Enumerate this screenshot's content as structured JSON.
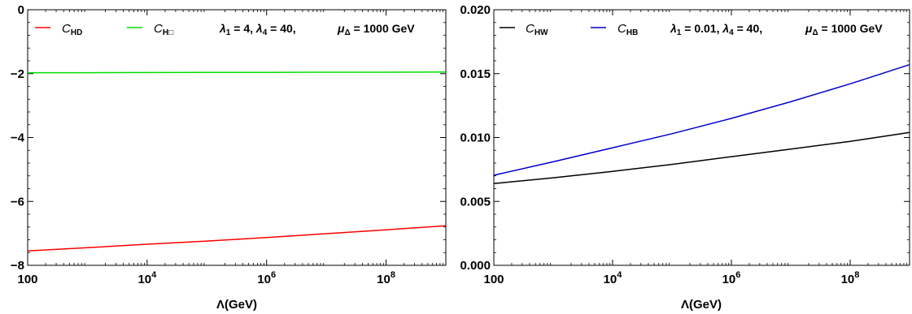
{
  "chart_data": [
    {
      "type": "line",
      "x_scale": "log",
      "xlabel": "Λ(GeV)",
      "ylabel": "",
      "xlim": [
        100,
        1000000000
      ],
      "ylim": [
        -8,
        0
      ],
      "x_ticks": [
        {
          "value": 100,
          "base": "100",
          "exp": ""
        },
        {
          "value": 10000,
          "base": "10",
          "exp": "4"
        },
        {
          "value": 1000000,
          "base": "10",
          "exp": "6"
        },
        {
          "value": 100000000,
          "base": "10",
          "exp": "8"
        }
      ],
      "y_ticks": [
        {
          "value": 0,
          "label": "0"
        },
        {
          "value": -2,
          "label": "−2"
        },
        {
          "value": -4,
          "label": "−4"
        },
        {
          "value": -6,
          "label": "−6"
        },
        {
          "value": -8,
          "label": "−8"
        }
      ],
      "legend_position": "top",
      "series": [
        {
          "name": "C",
          "name_sub": "HD",
          "color": "#ff0000",
          "x": [
            100,
            1000,
            10000,
            100000,
            1000000,
            10000000,
            100000000,
            1000000000
          ],
          "y": [
            -7.55,
            -7.45,
            -7.34,
            -7.24,
            -7.13,
            -7.01,
            -6.89,
            -6.76
          ]
        },
        {
          "name": "C",
          "name_sub": "H□",
          "color": "#00dd00",
          "x": [
            100,
            1000,
            10000,
            100000,
            1000000,
            10000000,
            100000000,
            1000000000
          ],
          "y": [
            -1.97,
            -1.97,
            -1.965,
            -1.96,
            -1.96,
            -1.955,
            -1.955,
            -1.95
          ]
        }
      ],
      "annotation": {
        "parts": [
          {
            "sym": "λ",
            "sub": "1",
            "val": " = 4, "
          },
          {
            "sym": "λ",
            "sub": "4",
            "val": " = 40,"
          }
        ],
        "mu": {
          "sym": "μ",
          "sub": "Δ",
          "val": " = 1000 GeV"
        }
      }
    },
    {
      "type": "line",
      "x_scale": "log",
      "xlabel": "Λ(GeV)",
      "ylabel": "",
      "xlim": [
        100,
        1000000000
      ],
      "ylim": [
        0,
        0.02
      ],
      "x_ticks": [
        {
          "value": 100,
          "base": "100",
          "exp": ""
        },
        {
          "value": 10000,
          "base": "10",
          "exp": "4"
        },
        {
          "value": 1000000,
          "base": "10",
          "exp": "6"
        },
        {
          "value": 100000000,
          "base": "10",
          "exp": "8"
        }
      ],
      "y_ticks": [
        {
          "value": 0,
          "label": "0.000"
        },
        {
          "value": 0.005,
          "label": "0.005"
        },
        {
          "value": 0.01,
          "label": "0.010"
        },
        {
          "value": 0.015,
          "label": "0.015"
        },
        {
          "value": 0.02,
          "label": "0.020"
        }
      ],
      "legend_position": "top",
      "series": [
        {
          "name": "C",
          "name_sub": "HW",
          "color": "#000000",
          "x": [
            100,
            1000,
            10000,
            100000,
            1000000,
            10000000,
            100000000,
            1000000000
          ],
          "y": [
            0.0064,
            0.00685,
            0.00735,
            0.0079,
            0.0085,
            0.0091,
            0.0097,
            0.0104
          ]
        },
        {
          "name": "C",
          "name_sub": "HB",
          "color": "#0000cc",
          "x": [
            100,
            1000,
            10000,
            100000,
            1000000,
            10000000,
            100000000,
            1000000000
          ],
          "y": [
            0.00705,
            0.0081,
            0.0092,
            0.0103,
            0.0115,
            0.0128,
            0.0142,
            0.0157
          ]
        }
      ],
      "annotation": {
        "parts": [
          {
            "sym": "λ",
            "sub": "1",
            "val": " = 0.01, "
          },
          {
            "sym": "λ",
            "sub": "4",
            "val": " = 40,"
          }
        ],
        "mu": {
          "sym": "μ",
          "sub": "Δ",
          "val": " = 1000 GeV"
        }
      }
    }
  ]
}
